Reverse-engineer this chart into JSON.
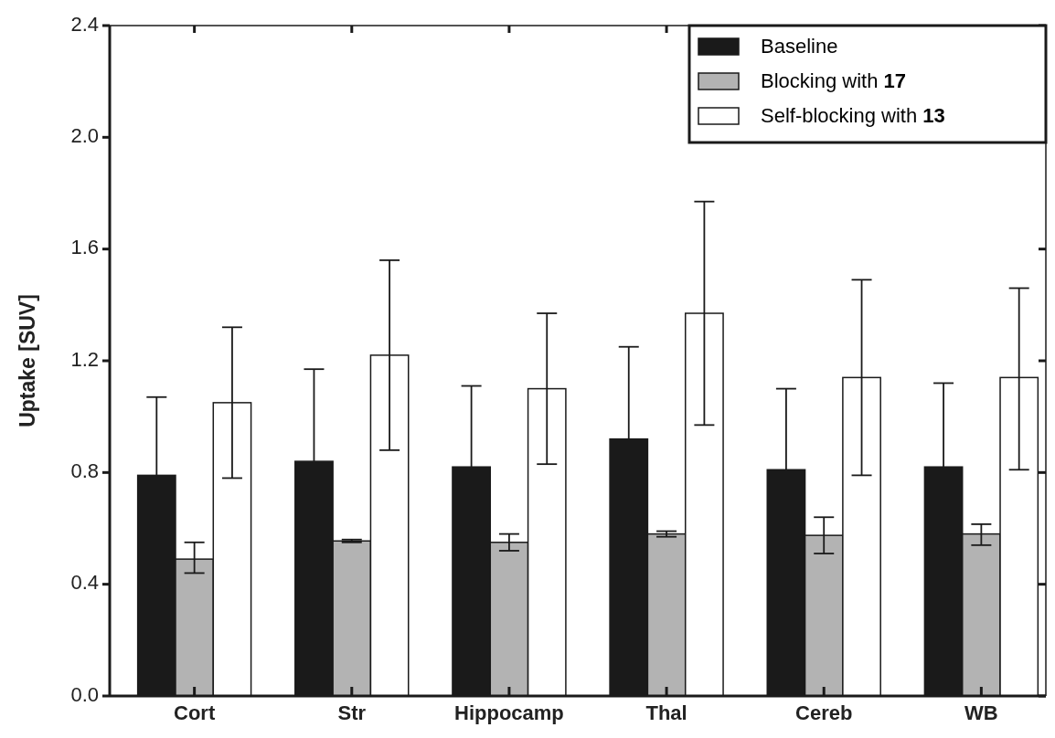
{
  "chart_data": {
    "type": "bar",
    "ylabel": "Uptake [SUV]",
    "categories": [
      "Cort",
      "Str",
      "Hippocamp",
      "Thal",
      "Cereb",
      "WB"
    ],
    "ylim": [
      0,
      2.4
    ],
    "yticks": [
      {
        "value": 0,
        "label": "0.0"
      },
      {
        "value": 0.4,
        "label": "0.4"
      },
      {
        "value": 0.8,
        "label": "0.8"
      },
      {
        "value": 1.2,
        "label": "1.2"
      },
      {
        "value": 1.6,
        "label": "1.6"
      },
      {
        "value": 2.0,
        "label": "2.0"
      },
      {
        "value": 2.4,
        "label": "2.4"
      }
    ],
    "grid": false,
    "legend": "top right",
    "series": [
      {
        "name": "Baseline",
        "color": "#1a1a1a",
        "values": [
          0.79,
          0.84,
          0.82,
          0.92,
          0.81,
          0.82
        ],
        "errors": [
          [
            0.79,
            1.07
          ],
          [
            0.84,
            1.17
          ],
          [
            0.82,
            1.11
          ],
          [
            0.92,
            1.25
          ],
          [
            0.81,
            1.1
          ],
          [
            0.82,
            1.12
          ]
        ]
      },
      {
        "name": "Blocking with 17",
        "color": "#b3b3b3",
        "values": [
          0.49,
          0.555,
          0.55,
          0.58,
          0.575,
          0.58
        ],
        "errors": [
          [
            0.44,
            0.55
          ],
          [
            0.55,
            0.56
          ],
          [
            0.52,
            0.58
          ],
          [
            0.57,
            0.59
          ],
          [
            0.51,
            0.64
          ],
          [
            0.54,
            0.615
          ]
        ]
      },
      {
        "name": "Self-blocking with 13",
        "color": "#ffffff",
        "values": [
          1.05,
          1.22,
          1.1,
          1.37,
          1.14,
          1.14
        ],
        "errors": [
          [
            0.78,
            1.32
          ],
          [
            0.88,
            1.56
          ],
          [
            0.83,
            1.37
          ],
          [
            0.97,
            1.77
          ],
          [
            0.79,
            1.49
          ],
          [
            0.81,
            1.46
          ]
        ]
      }
    ]
  }
}
